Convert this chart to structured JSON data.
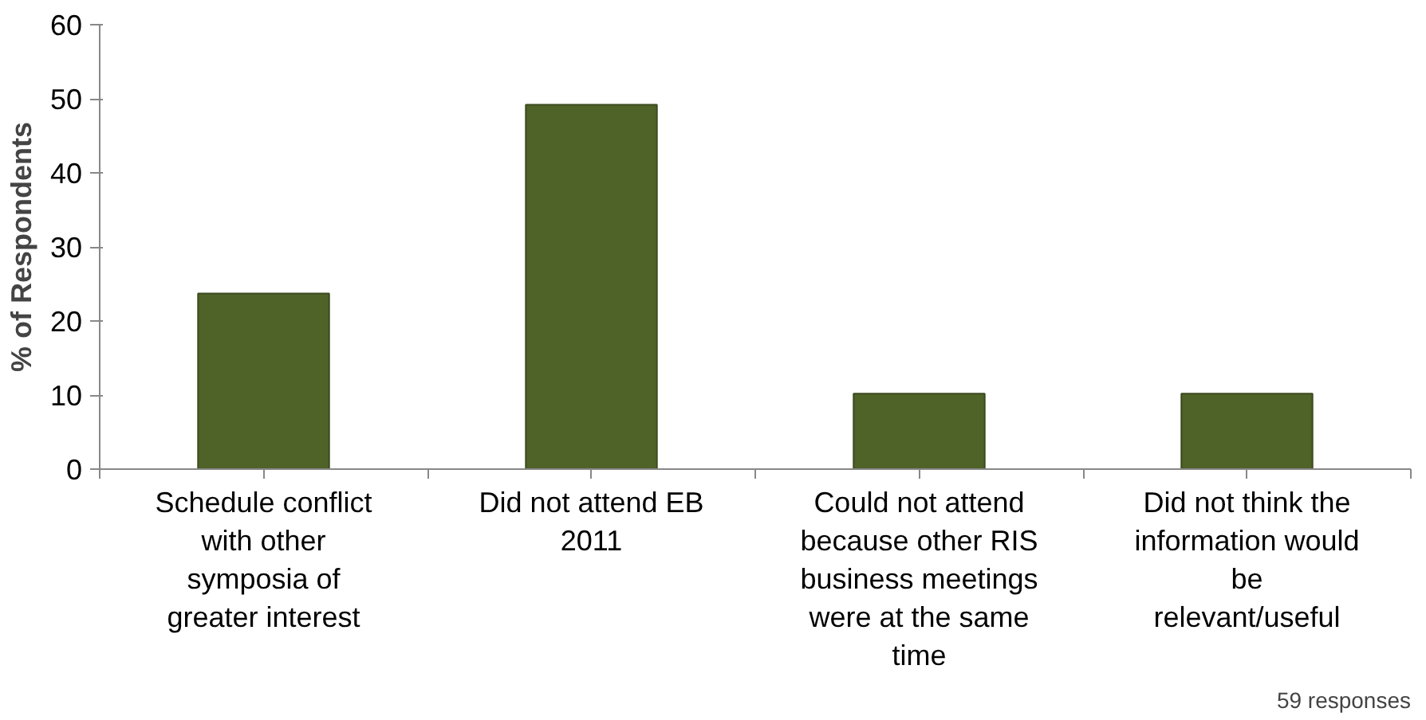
{
  "chart_data": {
    "type": "bar",
    "ylabel": "% of Respondents",
    "categories": [
      "Schedule conflict with other symposia of greater interest",
      "Did not attend EB 2011",
      "Could not attend because other RIS business meetings were at the same time",
      "Did not think the information would be relevant/useful"
    ],
    "values": [
      23.7,
      49.2,
      10.2,
      10.2
    ],
    "color": "#4f6228",
    "ylim": [
      0,
      60
    ],
    "yticks": [
      0,
      10,
      20,
      30,
      40,
      50,
      60
    ],
    "grid": false,
    "annotations": [
      "59 responses"
    ]
  }
}
